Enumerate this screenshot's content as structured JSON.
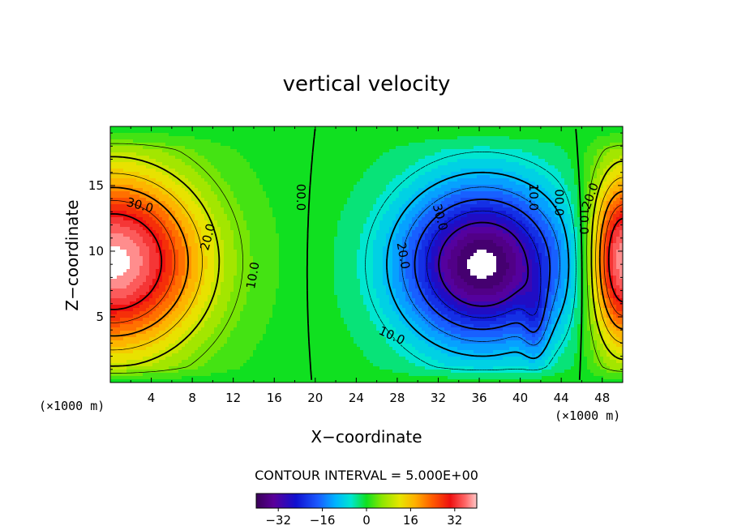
{
  "chart_data": {
    "type": "contour",
    "title": "vertical velocity",
    "xlabel": "X−coordinate",
    "ylabel": "Z−coordinate",
    "x_unit_label_left": "(×1000 m)",
    "x_unit_label_right": "(×1000 m)",
    "xlim": [
      0,
      50
    ],
    "ylim": [
      0,
      19.5
    ],
    "x_ticks": [
      "4",
      "8",
      "12",
      "16",
      "20",
      "24",
      "28",
      "32",
      "36",
      "40",
      "44",
      "48"
    ],
    "y_ticks": [
      "5",
      "10",
      "15"
    ],
    "contour_interval_text": "CONTOUR INTERVAL = 5.000E+00",
    "contour_labels": [
      {
        "text": "30.0",
        "x": 2.8,
        "z": 13.2
      },
      {
        "text": "20.0",
        "x": 9.9,
        "z": 11.0
      },
      {
        "text": "10.0",
        "x": 14.3,
        "z": 8.1
      },
      {
        "text": "00.0",
        "x": 18.2,
        "z": 14.1
      },
      {
        "text": "30.0",
        "x": 31.8,
        "z": 12.5
      },
      {
        "text": "20.0",
        "x": 28.2,
        "z": 9.6
      },
      {
        "text": "10.0",
        "x": 27.3,
        "z": 3.3
      },
      {
        "text": "10.0",
        "x": 40.9,
        "z": 14.1
      },
      {
        "text": "00.0",
        "x": 43.4,
        "z": 13.7
      },
      {
        "text": "10.0",
        "x": 45.8,
        "z": 12.3
      },
      {
        "text": "20.0",
        "x": 47.2,
        "z": 14.1
      }
    ],
    "features": [
      {
        "name": "updraft-left",
        "x": 0.3,
        "z": 9.2,
        "max": 35
      },
      {
        "name": "downdraft-center",
        "x": 36.3,
        "z": 9.0,
        "min": -35
      },
      {
        "name": "updraft-right",
        "x": 50.0,
        "z": 9.3,
        "max": 35
      }
    ],
    "colorbar": {
      "ticks": [
        "−32",
        "−16",
        "0",
        "16",
        "32"
      ],
      "tick_values": [
        -32,
        -16,
        0,
        16,
        32
      ],
      "range": [
        -40,
        40
      ]
    }
  }
}
